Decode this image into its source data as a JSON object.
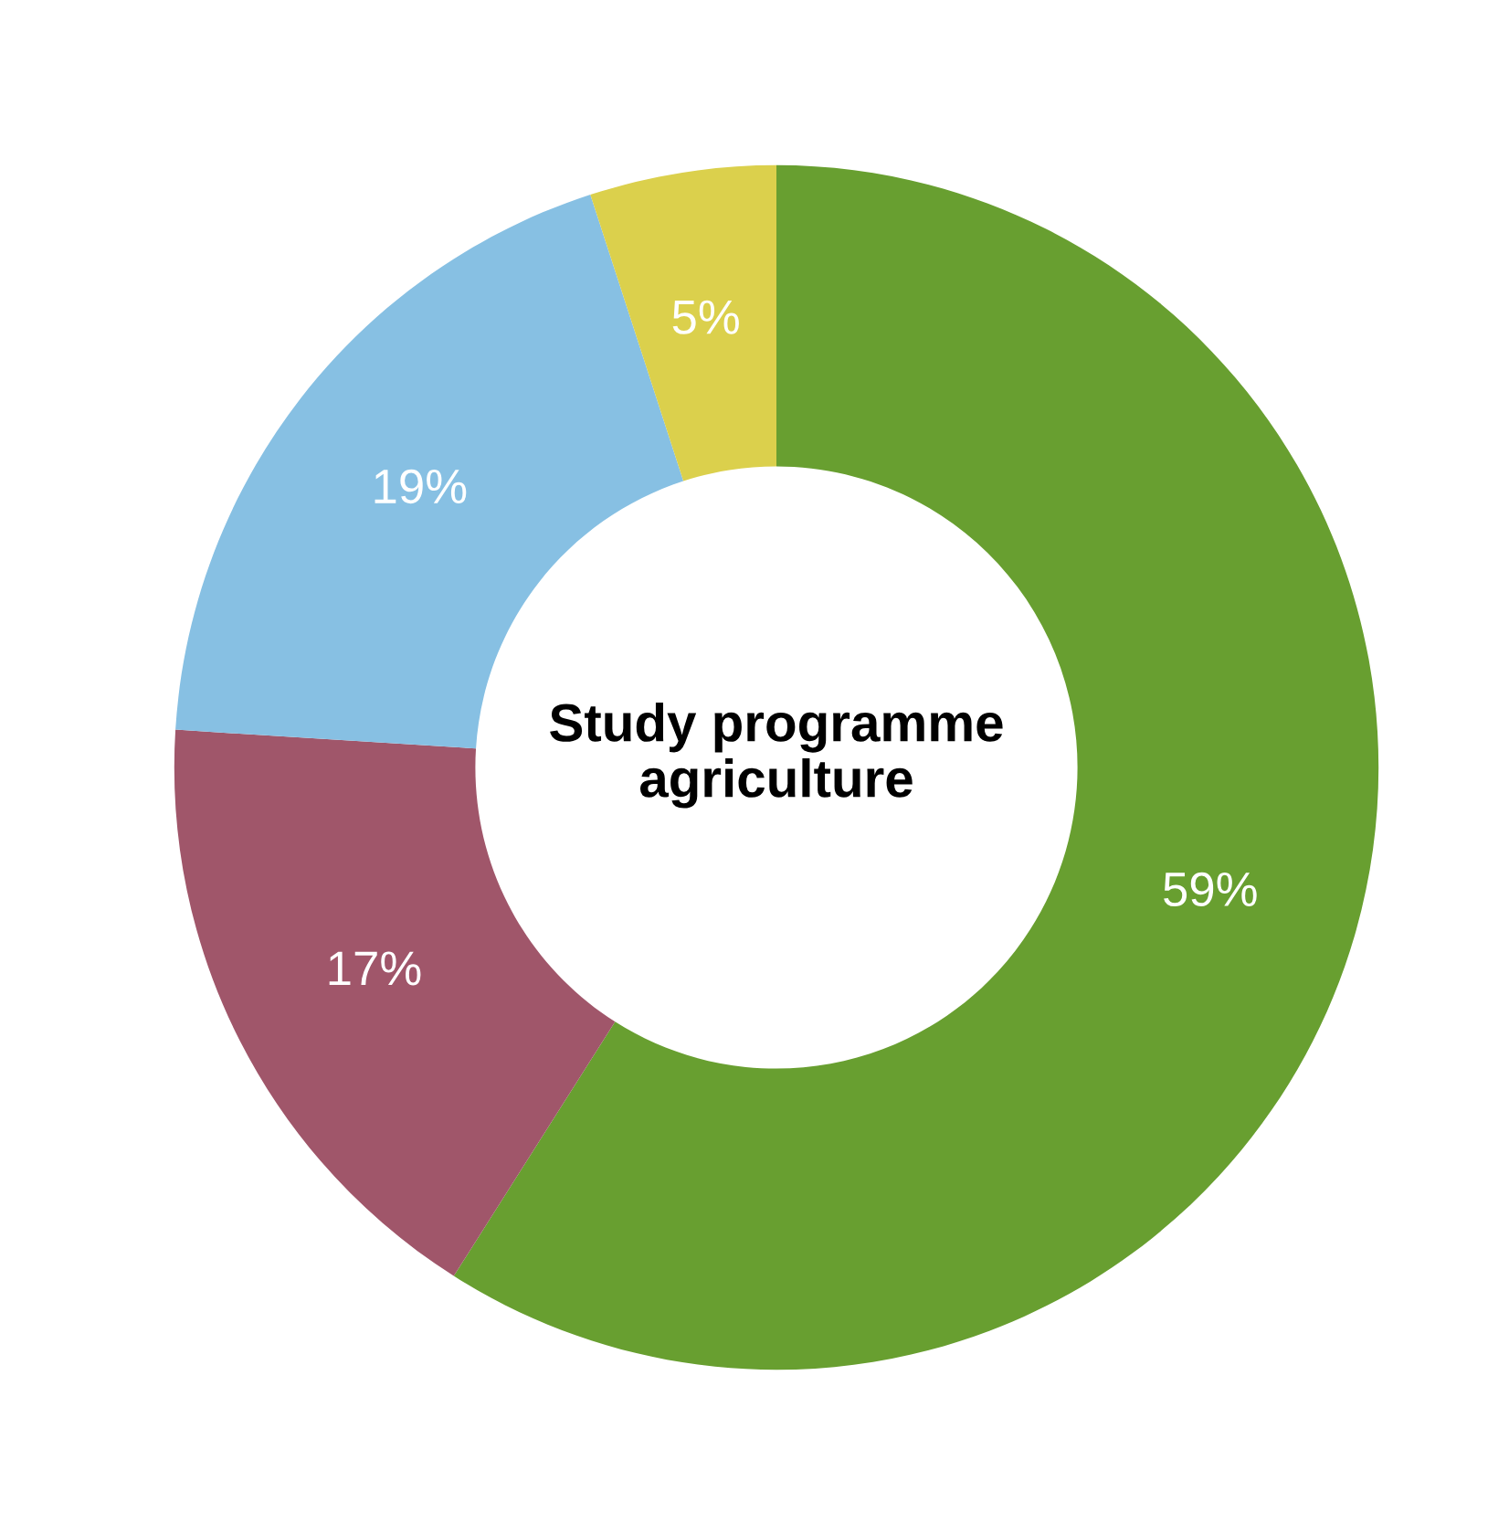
{
  "chart_data": {
    "type": "donut",
    "title": "Study programme\nagriculture",
    "categories": [
      null,
      null,
      null,
      null
    ],
    "values": [
      59,
      17,
      19,
      5
    ],
    "colors": [
      "#689f30",
      "#a0566a",
      "#87c0e3",
      "#dbd04c"
    ],
    "value_labels": [
      "59%",
      "17%",
      "19%",
      "5%"
    ],
    "legend": false
  }
}
